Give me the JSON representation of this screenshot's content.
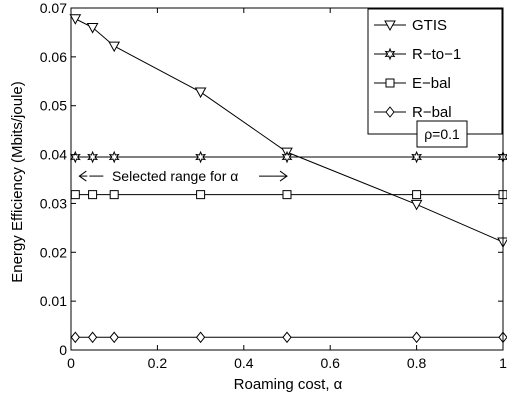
{
  "chart_data": {
    "type": "line",
    "xlabel": "Roaming cost, α",
    "ylabel": "Energy Efficiency (Mbits/joule)",
    "xlim": [
      0,
      1
    ],
    "ylim": [
      0,
      0.07
    ],
    "x_ticks": [
      0,
      0.2,
      0.4,
      0.6,
      0.8,
      1
    ],
    "x_tick_labels": [
      "0",
      "0.2",
      "0.4",
      "0.6",
      "0.8",
      "1"
    ],
    "y_ticks": [
      0,
      0.01,
      0.02,
      0.03,
      0.04,
      0.05,
      0.06,
      0.07
    ],
    "y_tick_labels": [
      "0",
      "0.01",
      "0.02",
      "0.03",
      "0.04",
      "0.05",
      "0.06",
      "0.07"
    ],
    "grid": false,
    "legend_position": "top-right",
    "x": [
      0.01,
      0.05,
      0.1,
      0.3,
      0.5,
      0.8,
      1.0
    ],
    "series": [
      {
        "name": "GTIS",
        "marker": "triangle-down",
        "values": [
          0.0678,
          0.066,
          0.0622,
          0.0528,
          0.0405,
          0.0298,
          0.0221
        ]
      },
      {
        "name": "R−to−1",
        "marker": "star",
        "values": [
          0.0395,
          0.0395,
          0.0395,
          0.0395,
          0.0395,
          0.0395,
          0.0395
        ]
      },
      {
        "name": "E−bal",
        "marker": "square",
        "values": [
          0.0318,
          0.0318,
          0.0318,
          0.0318,
          0.0318,
          0.0318,
          0.0318
        ]
      },
      {
        "name": "R−bal",
        "marker": "diamond",
        "values": [
          0.0026,
          0.0026,
          0.0026,
          0.0026,
          0.0026,
          0.0026,
          0.0026
        ]
      }
    ],
    "annotations": {
      "rho_label": "ρ=0.1",
      "range_label": "Selected range for α",
      "range_x": [
        0.01,
        0.5
      ],
      "range_y": 0.0356
    }
  }
}
